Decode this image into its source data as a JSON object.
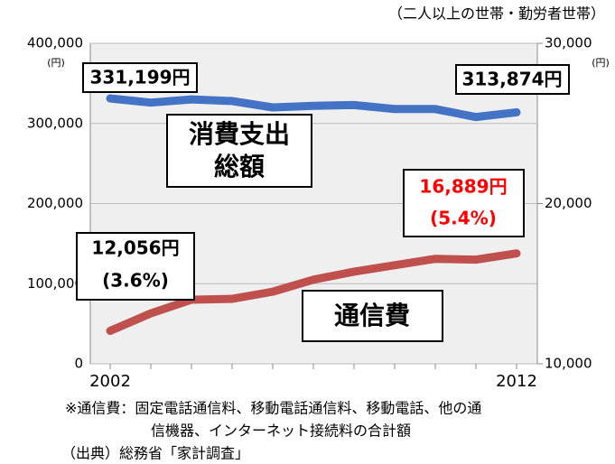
{
  "chart_data": {
    "type": "line",
    "note": "（二人以上の世帯・勤労者世帯）",
    "y_unit": "(円)",
    "y2_unit": "(円)",
    "categories": [
      "2002",
      null,
      null,
      null,
      null,
      null,
      null,
      null,
      null,
      null,
      "2012"
    ],
    "ylim": [
      0,
      400000
    ],
    "yticks": [
      0,
      {
        "value": 100000,
        "label": "100,000"
      },
      {
        "value": 200000,
        "label": "200,000"
      },
      {
        "value": 300000,
        "label": "300,000"
      },
      {
        "value": 400000,
        "label": "400,000"
      }
    ],
    "y2lim": [
      10000,
      30000
    ],
    "y2ticks": [
      {
        "value": 10000,
        "label": "10,000"
      },
      {
        "value": 20000,
        "label": "20,000"
      },
      {
        "value": 30000,
        "label": "30,000"
      }
    ],
    "series": [
      {
        "name": [
          "消費支出",
          "総額"
        ],
        "color": "#4472c4",
        "values": [
          331199,
          326000,
          330000,
          328000,
          320000,
          322000,
          323000,
          318000,
          318000,
          308000,
          313874
        ],
        "value_labels": [
          "331,199円",
          null,
          null,
          null,
          null,
          null,
          null,
          null,
          null,
          null,
          "313,874円"
        ]
      },
      {
        "name": [
          "通信費"
        ],
        "color": "#c0504d",
        "axis": "y2",
        "values": [
          12056,
          13150,
          14000,
          14050,
          14500,
          15250,
          15750,
          16150,
          16550,
          16500,
          16889
        ],
        "value_labels": [
          "12,056円",
          null,
          null,
          null,
          null,
          null,
          null,
          null,
          null,
          null,
          "16,889円"
        ],
        "share_labels": [
          "(3.6%)",
          null,
          null,
          null,
          null,
          null,
          null,
          null,
          null,
          null,
          "(5.4%)"
        ]
      }
    ],
    "footnotes": [
      "※通信費：固定電話通信料、移動電話通信料、移動電話、他の通",
      "信機器、インターネット接続料の合計額",
      "（出典）総務省「家計調査」"
    ]
  }
}
